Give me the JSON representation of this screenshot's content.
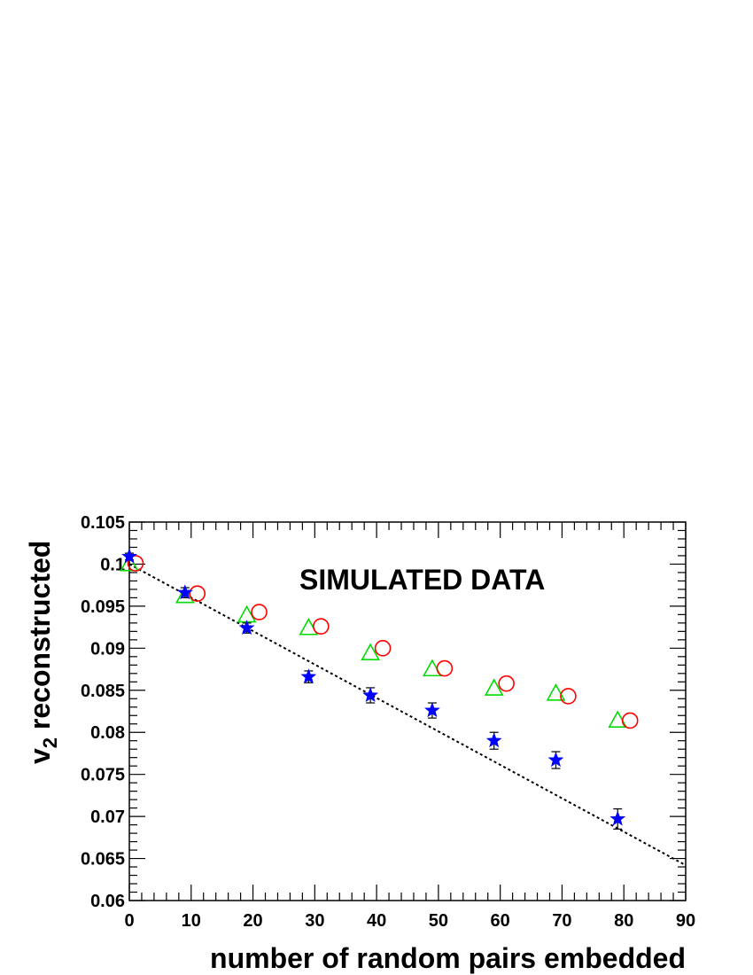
{
  "chart_data": {
    "type": "scatter",
    "title": "",
    "annotation": "SIMULATED DATA",
    "xlabel": "number of random pairs embedded",
    "ylabel_main": "v",
    "ylabel_sub": "2",
    "ylabel_rest": " reconstructed",
    "xlim": [
      0,
      90
    ],
    "ylim": [
      0.06,
      0.105
    ],
    "grid": false,
    "legend": "none",
    "xticks": [
      "0",
      "10",
      "20",
      "30",
      "40",
      "50",
      "60",
      "70",
      "80",
      "90"
    ],
    "yticks": [
      "0.06",
      "0.065",
      "0.07",
      "0.075",
      "0.08",
      "0.085",
      "0.09",
      "0.095",
      "0.1",
      "0.105"
    ],
    "series": [
      {
        "marker": "star",
        "color": "#0000ff",
        "x": [
          0,
          9,
          19,
          29,
          39,
          49,
          59,
          69,
          79
        ],
        "y": [
          0.1009,
          0.0966,
          0.0924,
          0.0866,
          0.0844,
          0.0826,
          0.079,
          0.0767,
          0.0697
        ],
        "err": [
          0.0004,
          0.0006,
          0.0006,
          0.0007,
          0.0009,
          0.0009,
          0.001,
          0.001,
          0.0012
        ]
      },
      {
        "marker": "open-triangle",
        "color": "#00dd00",
        "x": [
          0,
          9,
          19,
          29,
          39,
          49,
          59,
          69,
          79
        ],
        "y": [
          0.1,
          0.0962,
          0.0939,
          0.0924,
          0.0894,
          0.0875,
          0.0852,
          0.0846,
          0.0814
        ]
      },
      {
        "marker": "open-circle",
        "color": "#ff0000",
        "x": [
          1,
          11,
          21,
          31,
          41,
          51,
          61,
          71,
          81
        ],
        "y": [
          0.1001,
          0.0965,
          0.0943,
          0.0926,
          0.09,
          0.0876,
          0.0858,
          0.0843,
          0.0814
        ]
      }
    ],
    "fit_line": {
      "style": "dotted",
      "color": "#000000",
      "x": [
        0,
        90
      ],
      "y": [
        0.1,
        0.0642
      ]
    }
  }
}
